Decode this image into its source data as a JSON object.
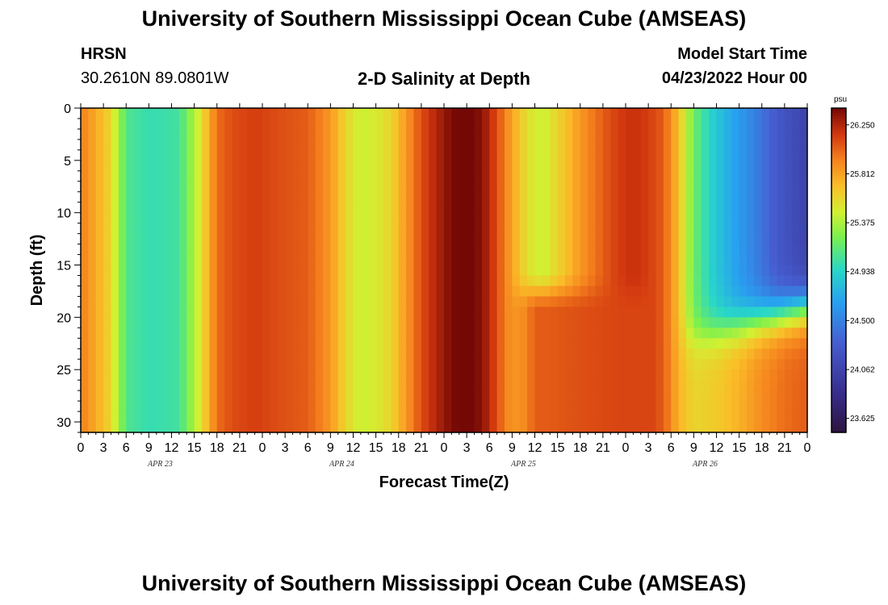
{
  "header": {
    "title": "University of Southern Mississippi Ocean Cube (AMSEAS)",
    "station": "HRSN",
    "coords": "30.2610N  89.0801W",
    "subtitle": "2-D Salinity at Depth",
    "model_label": "Model Start Time",
    "model_time": "04/23/2022 Hour 00"
  },
  "footer": {
    "title": "University of Southern Mississippi Ocean Cube (AMSEAS)"
  },
  "chart_data": {
    "type": "heatmap",
    "xlabel": "Forecast Time(Z)",
    "ylabel": "Depth (ft)",
    "x_ticks": [
      "0",
      "3",
      "6",
      "9",
      "12",
      "15",
      "18",
      "21",
      "0",
      "3",
      "6",
      "9",
      "12",
      "15",
      "18",
      "21",
      "0",
      "3",
      "6",
      "9",
      "12",
      "15",
      "18",
      "21",
      "0",
      "3",
      "6",
      "9",
      "12",
      "15",
      "18",
      "21",
      "0"
    ],
    "x_range_hours": [
      0,
      96
    ],
    "date_labels": [
      {
        "label": "APR 23",
        "hour": 10.5
      },
      {
        "label": "APR 24",
        "hour": 34.5
      },
      {
        "label": "APR 25",
        "hour": 58.5
      },
      {
        "label": "APR 26",
        "hour": 82.5
      }
    ],
    "y_ticks": [
      0,
      5,
      10,
      15,
      20,
      25,
      30
    ],
    "ylim": [
      0,
      31
    ],
    "y_reversed": true,
    "colorbar": {
      "unit": "psu",
      "min": 23.5,
      "max": 26.4,
      "ticks": [
        "26.250",
        "25.812",
        "25.375",
        "24.938",
        "24.500",
        "24.062",
        "23.625"
      ],
      "tick_values": [
        26.25,
        25.812,
        25.375,
        24.938,
        24.5,
        24.062,
        23.625
      ]
    },
    "surface_profile": [
      [
        0,
        25.95
      ],
      [
        4,
        25.6
      ],
      [
        6,
        25.1
      ],
      [
        9,
        25.0
      ],
      [
        13,
        25.05
      ],
      [
        16,
        25.55
      ],
      [
        18,
        26.0
      ],
      [
        20,
        26.1
      ],
      [
        23,
        26.15
      ],
      [
        26,
        26.1
      ],
      [
        30,
        26.05
      ],
      [
        33,
        25.85
      ],
      [
        35,
        25.6
      ],
      [
        37,
        25.45
      ],
      [
        39,
        25.5
      ],
      [
        41,
        25.6
      ],
      [
        43,
        25.85
      ],
      [
        45,
        26.1
      ],
      [
        47,
        26.25
      ],
      [
        49,
        26.38
      ],
      [
        51,
        26.42
      ],
      [
        53,
        26.35
      ],
      [
        55,
        26.1
      ],
      [
        57,
        25.8
      ],
      [
        59,
        25.55
      ],
      [
        61,
        25.45
      ],
      [
        63,
        25.6
      ],
      [
        66,
        25.85
      ],
      [
        69,
        26.05
      ],
      [
        71,
        26.15
      ],
      [
        73,
        26.2
      ],
      [
        75,
        26.15
      ],
      [
        77,
        26.05
      ],
      [
        79,
        25.7
      ],
      [
        81,
        25.2
      ],
      [
        83,
        24.95
      ],
      [
        86,
        24.7
      ],
      [
        89,
        24.5
      ],
      [
        92,
        24.25
      ],
      [
        96,
        24.05
      ]
    ],
    "bottom_profile": [
      [
        75,
        26.15
      ],
      [
        77,
        26.05
      ],
      [
        79,
        25.75
      ],
      [
        81,
        25.6
      ],
      [
        84,
        25.65
      ],
      [
        87,
        25.75
      ],
      [
        90,
        25.9
      ],
      [
        93,
        26.0
      ],
      [
        96,
        26.05
      ]
    ]
  }
}
